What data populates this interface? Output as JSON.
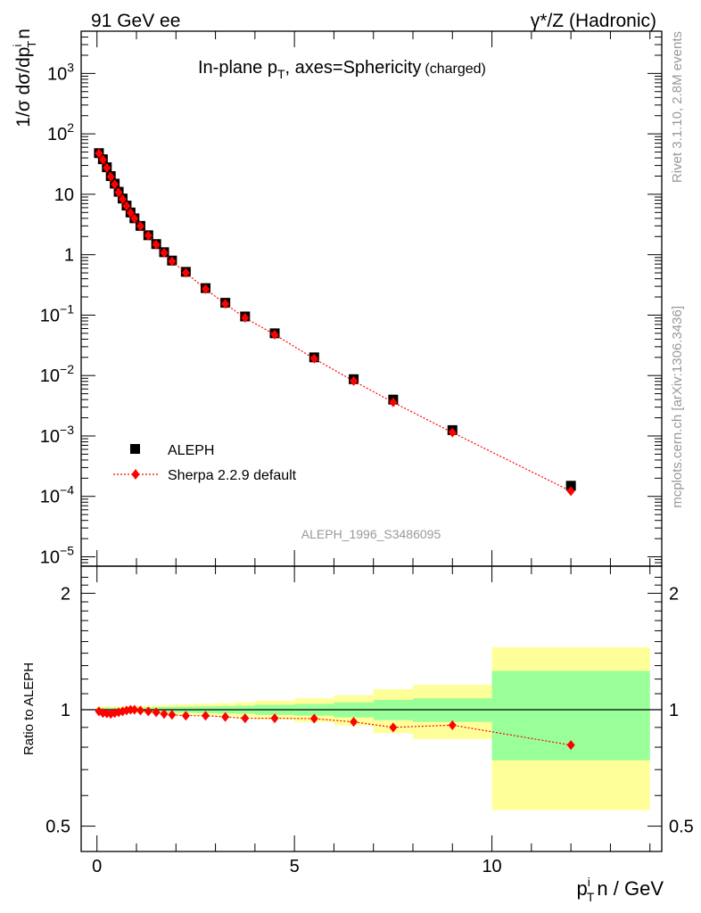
{
  "header": {
    "left": "91 GeV ee",
    "right_gamma": "γ",
    "right_rest": "*/Z (Hadronic)"
  },
  "side_text": {
    "rivet": "Rivet 3.1.10,  2.8M events",
    "mcplots": "mcplots.cern.ch [arXiv:1306.3436]"
  },
  "colors": {
    "data_marker": "#000000",
    "mc_line": "#ff0000",
    "band_inner": "#99ff99",
    "band_outer": "#ffff99"
  },
  "chart_data": [
    {
      "type": "scatter",
      "title_main": "In-plane p",
      "title_sub": "T",
      "title_rest": ", axes=Sphericity",
      "title_small": "(charged)",
      "ylabel_main": "1/σ dσ/dp",
      "ylabel_sup": "i",
      "ylabel_sub": "T",
      "ylabel_tail": "n",
      "yscale": "log",
      "xlim": [
        -0.4,
        14.3
      ],
      "ylim": [
        7e-06,
        5000
      ],
      "ytick_values": [
        1e-05,
        0.0001,
        0.001,
        0.01,
        0.1,
        1,
        10,
        100,
        1000
      ],
      "ytick_labels": [
        {
          "base": "10",
          "exp": "−5"
        },
        {
          "base": "10",
          "exp": "−4"
        },
        {
          "base": "10",
          "exp": "−3"
        },
        {
          "base": "10",
          "exp": "−2"
        },
        {
          "base": "10",
          "exp": "−1"
        },
        {
          "base": "1",
          "exp": ""
        },
        {
          "base": "10",
          "exp": ""
        },
        {
          "base": "10",
          "exp": "2"
        },
        {
          "base": "10",
          "exp": "3"
        }
      ],
      "watermark": "ALEPH_1996_S3486095",
      "legend_position": "bottom-left",
      "x": [
        0.05,
        0.15,
        0.25,
        0.35,
        0.45,
        0.55,
        0.65,
        0.75,
        0.85,
        0.95,
        1.1,
        1.3,
        1.5,
        1.7,
        1.9,
        2.25,
        2.75,
        3.25,
        3.75,
        4.5,
        5.5,
        6.5,
        7.5,
        9.0,
        12.0
      ],
      "series": [
        {
          "name": "ALEPH",
          "marker": "square",
          "values": [
            48,
            38,
            28,
            20,
            15,
            11,
            8.5,
            6.5,
            5.0,
            4.0,
            3.0,
            2.1,
            1.5,
            1.1,
            0.8,
            0.52,
            0.28,
            0.16,
            0.095,
            0.05,
            0.02,
            0.0087,
            0.004,
            0.00125,
            0.00015
          ]
        },
        {
          "name": "Sherpa 2.2.9 default",
          "marker": "diamond",
          "values": [
            47.5,
            37.3,
            27.4,
            19.5,
            14.6,
            10.7,
            8.3,
            6.4,
            4.93,
            3.96,
            2.97,
            2.07,
            1.47,
            1.07,
            0.775,
            0.502,
            0.27,
            0.153,
            0.09,
            0.0475,
            0.019,
            0.0081,
            0.0036,
            0.00114,
            0.000122
          ]
        }
      ]
    },
    {
      "type": "scatter",
      "ylabel": "Ratio to ALEPH",
      "xlabel_main": "p",
      "xlabel_sup": "i",
      "xlabel_sub": "T",
      "xlabel_rest": "n / GeV",
      "yscale": "log",
      "xlim": [
        -0.4,
        14.3
      ],
      "ylim": [
        0.43,
        2.35
      ],
      "xtick_values": [
        0,
        5,
        10
      ],
      "xtick_labels": [
        "0",
        "5",
        "10"
      ],
      "ytick_values": [
        0.5,
        1,
        2
      ],
      "ytick_labels": [
        "0.5",
        "1",
        "2"
      ],
      "reference_line": 1,
      "bands": {
        "edges": [
          0,
          0.1,
          0.2,
          0.3,
          0.4,
          0.5,
          0.6,
          0.7,
          0.8,
          0.9,
          1.0,
          1.2,
          1.4,
          1.6,
          1.8,
          2.0,
          2.5,
          3.0,
          3.5,
          4.0,
          5.0,
          6.0,
          7.0,
          8.0,
          10.0,
          14.0
        ],
        "inner": [
          0.012,
          0.012,
          0.012,
          0.012,
          0.012,
          0.012,
          0.012,
          0.012,
          0.012,
          0.012,
          0.013,
          0.014,
          0.015,
          0.016,
          0.017,
          0.018,
          0.02,
          0.022,
          0.024,
          0.03,
          0.035,
          0.045,
          0.06,
          0.07,
          0.26
        ],
        "outer": [
          0.02,
          0.02,
          0.02,
          0.02,
          0.02,
          0.02,
          0.02,
          0.02,
          0.02,
          0.02,
          0.022,
          0.024,
          0.026,
          0.028,
          0.03,
          0.033,
          0.036,
          0.04,
          0.045,
          0.055,
          0.07,
          0.09,
          0.13,
          0.16,
          0.45
        ]
      },
      "series": [
        {
          "name": "Sherpa 2.2.9 default",
          "marker": "diamond",
          "values": [
            0.99,
            0.98,
            0.978,
            0.975,
            0.98,
            0.985,
            0.99,
            0.995,
            1.0,
            1.0,
            0.995,
            0.99,
            0.985,
            0.975,
            0.97,
            0.965,
            0.965,
            0.958,
            0.95,
            0.95,
            0.948,
            0.93,
            0.9,
            0.912,
            0.81
          ]
        }
      ]
    }
  ]
}
